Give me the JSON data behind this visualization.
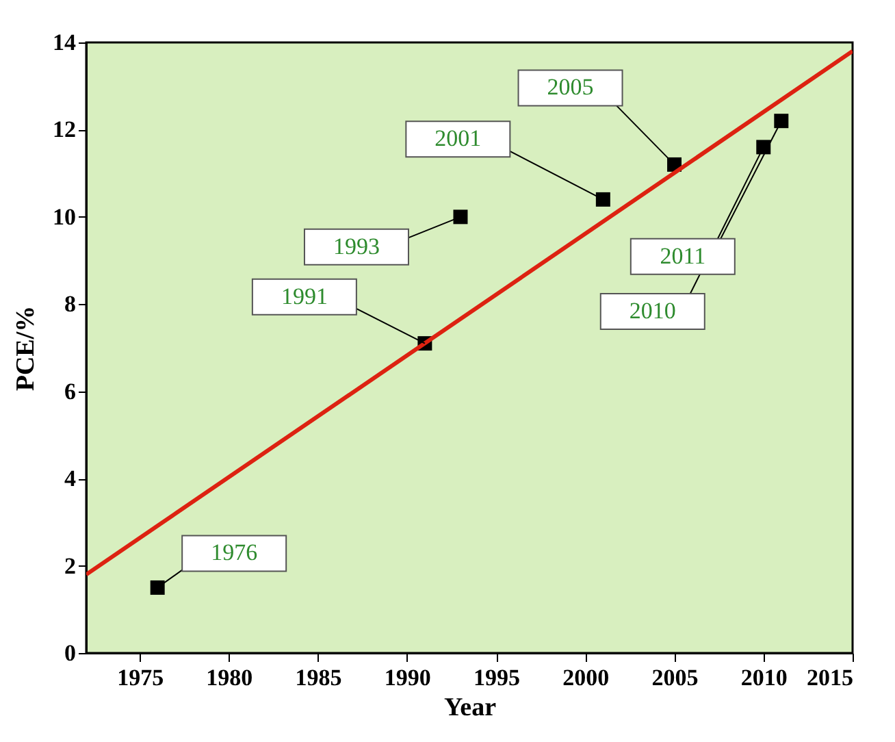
{
  "chart_data": {
    "type": "scatter",
    "xlabel": "Year",
    "ylabel": "PCE/%",
    "xlim": [
      1972,
      2015
    ],
    "xticks": [
      1975,
      1980,
      1985,
      1990,
      1995,
      2000,
      2005,
      2010,
      2015
    ],
    "ylim": [
      0,
      14
    ],
    "yticks": [
      0,
      2,
      4,
      6,
      8,
      10,
      12,
      14
    ],
    "grid": false,
    "marker": "square",
    "series": [
      {
        "color": "#000000",
        "x": [
          1976,
          1991,
          1993,
          2001,
          2005,
          2010,
          2011
        ],
        "values": [
          1.5,
          7.1,
          10.0,
          10.4,
          11.2,
          11.6,
          12.2
        ]
      },
      {
        "type": "line",
        "color": "#dd2211",
        "marker": "none",
        "x": [
          1972,
          2015
        ],
        "values": [
          1.8,
          13.8
        ]
      }
    ],
    "annotations": [
      {
        "text": "1976",
        "x": 1976,
        "y": 1.5
      },
      {
        "text": "1991",
        "x": 1991,
        "y": 7.1
      },
      {
        "text": "1993",
        "x": 1993,
        "y": 10.0
      },
      {
        "text": "2001",
        "x": 2001,
        "y": 10.4
      },
      {
        "text": "2005",
        "x": 2005,
        "y": 11.2
      },
      {
        "text": "2011",
        "x": 2011,
        "y": 12.2
      },
      {
        "text": "2010",
        "x": 2010,
        "y": 11.6
      }
    ]
  }
}
